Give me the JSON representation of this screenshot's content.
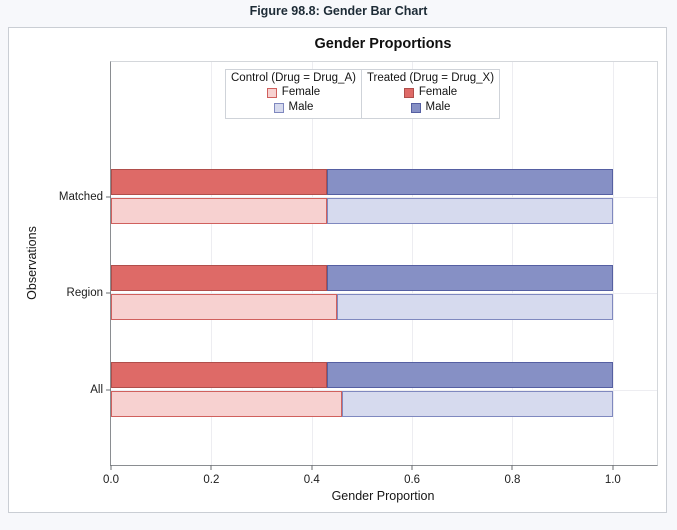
{
  "page": {
    "figure_title": "Figure 98.8: Gender Bar Chart"
  },
  "chart_data": {
    "type": "bar",
    "orientation": "horizontal",
    "stacked": true,
    "title": "Gender Proportions",
    "xlabel": "Gender Proportion",
    "ylabel": "Observations",
    "categories": [
      "Matched",
      "Region",
      "All"
    ],
    "x_ticks": [
      "0.0",
      "0.2",
      "0.4",
      "0.6",
      "0.8",
      "1.0"
    ],
    "x_tick_values": [
      0.0,
      0.2,
      0.4,
      0.6,
      0.8,
      1.0
    ],
    "xlim": [
      0.0,
      1.0
    ],
    "grid": true,
    "legend_position": "top-inside",
    "colors": {
      "control_female": {
        "fill": "#f7d1d0",
        "stroke": "#d0605d"
      },
      "control_male": {
        "fill": "#d6daee",
        "stroke": "#7f88bf"
      },
      "treated_female": {
        "fill": "#de6a67",
        "stroke": "#b04e4b"
      },
      "treated_male": {
        "fill": "#8690c5",
        "stroke": "#555fa2"
      }
    },
    "legend": [
      {
        "title": "Control (Drug = Drug_A)",
        "items": [
          {
            "label": "Female",
            "color_key": "control_female"
          },
          {
            "label": "Male",
            "color_key": "control_male"
          }
        ]
      },
      {
        "title": "Treated (Drug = Drug_X)",
        "items": [
          {
            "label": "Female",
            "color_key": "treated_female"
          },
          {
            "label": "Male",
            "color_key": "treated_male"
          }
        ]
      }
    ],
    "series": [
      {
        "name": "Treated (Drug = Drug_X)",
        "row": "treated",
        "female": [
          0.43,
          0.43,
          0.43
        ],
        "male": [
          0.57,
          0.57,
          0.57
        ]
      },
      {
        "name": "Control (Drug = Drug_A)",
        "row": "control",
        "female": [
          0.43,
          0.45,
          0.46
        ],
        "male": [
          0.57,
          0.55,
          0.54
        ]
      }
    ]
  }
}
